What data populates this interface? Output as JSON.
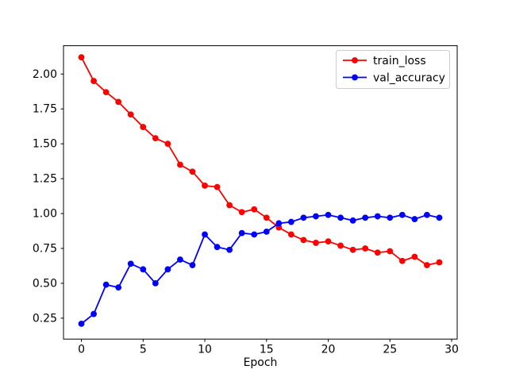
{
  "figure": {
    "background": "#ffffff",
    "border_color": "#000000"
  },
  "chart_data": {
    "type": "line",
    "title": "",
    "xlabel": "Epoch",
    "ylabel": "",
    "grid": false,
    "legend_position": "upper right",
    "xlim": [
      -1.45,
      30.45
    ],
    "ylim": [
      0.1,
      2.203
    ],
    "xticks": [
      0,
      5,
      10,
      15,
      20,
      25,
      30
    ],
    "yticks": [
      0.25,
      0.5,
      0.75,
      1.0,
      1.25,
      1.5,
      1.75,
      2.0
    ],
    "x": [
      0,
      1,
      2,
      3,
      4,
      5,
      6,
      7,
      8,
      9,
      10,
      11,
      12,
      13,
      14,
      15,
      16,
      17,
      18,
      19,
      20,
      21,
      22,
      23,
      24,
      25,
      26,
      27,
      28,
      29
    ],
    "series": [
      {
        "name": "train_loss",
        "color": "#ff0000",
        "marker": "circle",
        "values": [
          2.12,
          1.95,
          1.87,
          1.8,
          1.71,
          1.62,
          1.54,
          1.5,
          1.35,
          1.3,
          1.2,
          1.19,
          1.06,
          1.01,
          1.03,
          0.97,
          0.9,
          0.85,
          0.81,
          0.79,
          0.8,
          0.77,
          0.74,
          0.75,
          0.72,
          0.73,
          0.66,
          0.69,
          0.63,
          0.65
        ]
      },
      {
        "name": "val_accuracy",
        "color": "#0000ff",
        "marker": "circle",
        "values": [
          0.21,
          0.28,
          0.49,
          0.47,
          0.64,
          0.6,
          0.5,
          0.6,
          0.67,
          0.63,
          0.85,
          0.76,
          0.74,
          0.86,
          0.85,
          0.87,
          0.93,
          0.94,
          0.97,
          0.98,
          0.99,
          0.97,
          0.95,
          0.97,
          0.98,
          0.97,
          0.99,
          0.96,
          0.99,
          0.97
        ]
      }
    ]
  }
}
